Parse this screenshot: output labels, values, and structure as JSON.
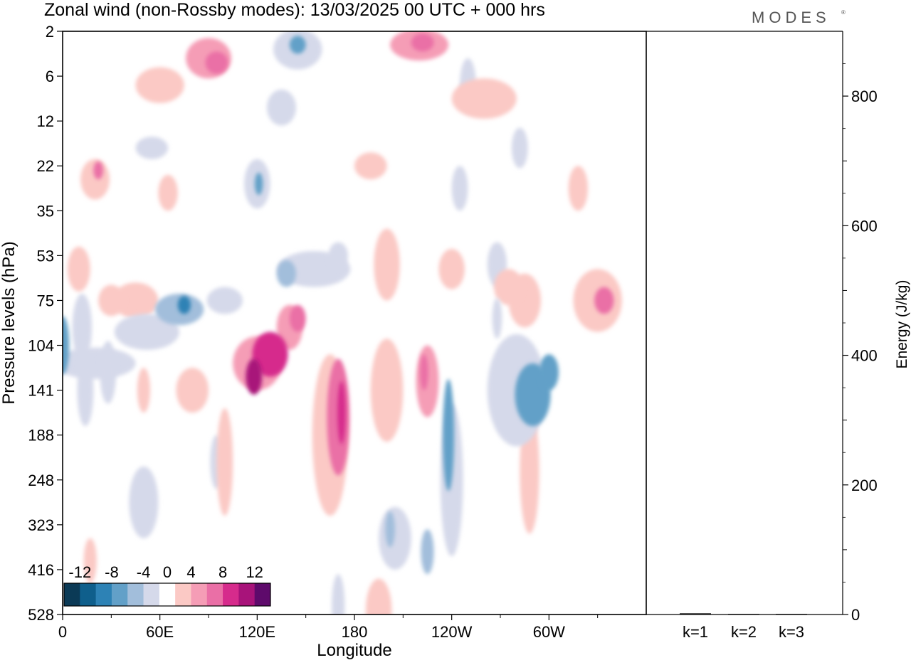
{
  "chart_data": {
    "type": "heatmap",
    "title": "Zonal wind (non-Rossby modes):  13/03/2025  00 UTC  + 000 hrs",
    "logo": "MODES",
    "xlabel": "Longitude",
    "ylabel": "Pressure levels (hPa)",
    "x_tick_labels": [
      "0",
      "60E",
      "120E",
      "180",
      "120W",
      "60W"
    ],
    "y_tick_labels": [
      "2",
      "6",
      "12",
      "22",
      "35",
      "53",
      "75",
      "104",
      "141",
      "188",
      "248",
      "323",
      "416",
      "528"
    ],
    "colorbar": {
      "tick_labels": [
        "-12",
        "-8",
        "-4",
        "0",
        "4",
        "8",
        "12"
      ],
      "levels": [
        -14,
        -12,
        -10,
        -8,
        -6,
        -4,
        -2,
        2,
        4,
        6,
        8,
        10,
        12,
        14
      ],
      "colors": [
        "#0b3a56",
        "#0f5f8c",
        "#2d82b5",
        "#62a0c8",
        "#a2bedb",
        "#d5d9ea",
        "#ffffff",
        "#fbc9c5",
        "#f59db6",
        "#ea6fa6",
        "#d62b8c",
        "#a8137a",
        "#5e0a6b"
      ]
    },
    "heatmap_blobs": [
      {
        "lon": 0,
        "p_index": 7.0,
        "w": 8,
        "h": 1.3,
        "value": -7
      },
      {
        "lon": 12,
        "p_index": 6.6,
        "w": 12,
        "h": 1.5,
        "value": -3
      },
      {
        "lon": 20,
        "p_index": 7.4,
        "w": 50,
        "h": 0.7,
        "value": -3
      },
      {
        "lon": 52,
        "p_index": 6.7,
        "w": 40,
        "h": 0.8,
        "value": -4
      },
      {
        "lon": 72,
        "p_index": 6.2,
        "w": 30,
        "h": 0.7,
        "value": -6
      },
      {
        "lon": 75,
        "p_index": 6.1,
        "w": 8,
        "h": 0.4,
        "value": -9
      },
      {
        "lon": 100,
        "p_index": 6.0,
        "w": 22,
        "h": 0.6,
        "value": -3
      },
      {
        "lon": 14,
        "p_index": 8.0,
        "w": 10,
        "h": 1.6,
        "value": -4
      },
      {
        "lon": 28,
        "p_index": 7.6,
        "w": 10,
        "h": 1.4,
        "value": -4
      },
      {
        "lon": 95,
        "p_index": 9.6,
        "w": 8,
        "h": 1.2,
        "value": -3
      },
      {
        "lon": 50,
        "p_index": 10.5,
        "w": 18,
        "h": 1.6,
        "value": -3
      },
      {
        "lon": 240,
        "p_index": 10.0,
        "w": 14,
        "h": 3.4,
        "value": -4
      },
      {
        "lon": 238,
        "p_index": 9.0,
        "w": 7,
        "h": 2.5,
        "value": -7
      },
      {
        "lon": 280,
        "p_index": 8.0,
        "w": 36,
        "h": 2.5,
        "value": -4
      },
      {
        "lon": 290,
        "p_index": 8.1,
        "w": 22,
        "h": 1.4,
        "value": -7
      },
      {
        "lon": 300,
        "p_index": 7.6,
        "w": 12,
        "h": 0.8,
        "value": -8
      },
      {
        "lon": 205,
        "p_index": 11.3,
        "w": 20,
        "h": 1.4,
        "value": -4
      },
      {
        "lon": 202,
        "p_index": 11.1,
        "w": 6,
        "h": 0.8,
        "value": -6
      },
      {
        "lon": 225,
        "p_index": 11.6,
        "w": 8,
        "h": 1.0,
        "value": -5
      },
      {
        "lon": 145,
        "p_index": 0.4,
        "w": 30,
        "h": 0.9,
        "value": -4
      },
      {
        "lon": 145,
        "p_index": 0.3,
        "w": 10,
        "h": 0.4,
        "value": -8
      },
      {
        "lon": 135,
        "p_index": 1.7,
        "w": 18,
        "h": 0.8,
        "value": -3
      },
      {
        "lon": 120,
        "p_index": 3.4,
        "w": 16,
        "h": 1.1,
        "value": -4
      },
      {
        "lon": 121,
        "p_index": 3.4,
        "w": 5,
        "h": 0.5,
        "value": -8
      },
      {
        "lon": 155,
        "p_index": 5.3,
        "w": 45,
        "h": 0.8,
        "value": -3
      },
      {
        "lon": 138,
        "p_index": 5.4,
        "w": 12,
        "h": 0.6,
        "value": -5
      },
      {
        "lon": 170,
        "p_index": 5.0,
        "w": 12,
        "h": 0.6,
        "value": -4
      },
      {
        "lon": 250,
        "p_index": 1.2,
        "w": 10,
        "h": 1.2,
        "value": -3
      },
      {
        "lon": 245,
        "p_index": 3.5,
        "w": 10,
        "h": 1.0,
        "value": -3
      },
      {
        "lon": 268,
        "p_index": 5.2,
        "w": 12,
        "h": 1.0,
        "value": -3
      },
      {
        "lon": 282,
        "p_index": 2.6,
        "w": 10,
        "h": 0.9,
        "value": -3
      },
      {
        "lon": 170,
        "p_index": 12.8,
        "w": 8,
        "h": 1.4,
        "value": -3
      },
      {
        "lon": 55,
        "p_index": 2.6,
        "w": 20,
        "h": 0.5,
        "value": -3
      },
      {
        "lon": 268,
        "p_index": 6.4,
        "w": 6,
        "h": 0.9,
        "value": -4
      },
      {
        "lon": 120,
        "p_index": 7.4,
        "w": 30,
        "h": 1.2,
        "value": 5
      },
      {
        "lon": 128,
        "p_index": 7.2,
        "w": 22,
        "h": 1.0,
        "value": 8
      },
      {
        "lon": 118,
        "p_index": 7.7,
        "w": 10,
        "h": 0.8,
        "value": 10
      },
      {
        "lon": 140,
        "p_index": 6.6,
        "w": 16,
        "h": 1.0,
        "value": 5
      },
      {
        "lon": 145,
        "p_index": 6.4,
        "w": 10,
        "h": 0.6,
        "value": 7
      },
      {
        "lon": 165,
        "p_index": 9.0,
        "w": 22,
        "h": 3.6,
        "value": 3
      },
      {
        "lon": 170,
        "p_index": 8.6,
        "w": 14,
        "h": 2.6,
        "value": 6
      },
      {
        "lon": 172,
        "p_index": 8.5,
        "w": 5,
        "h": 1.4,
        "value": 9
      },
      {
        "lon": 200,
        "p_index": 8.0,
        "w": 20,
        "h": 2.3,
        "value": 3
      },
      {
        "lon": 225,
        "p_index": 7.8,
        "w": 14,
        "h": 1.6,
        "value": 5
      },
      {
        "lon": 223,
        "p_index": 7.6,
        "w": 5,
        "h": 0.8,
        "value": 7
      },
      {
        "lon": 200,
        "p_index": 5.2,
        "w": 16,
        "h": 1.6,
        "value": 3
      },
      {
        "lon": 195,
        "p_index": 12.9,
        "w": 16,
        "h": 1.4,
        "value": 3
      },
      {
        "lon": 45,
        "p_index": 6.0,
        "w": 28,
        "h": 0.8,
        "value": 3
      },
      {
        "lon": 50,
        "p_index": 8.0,
        "w": 8,
        "h": 1.0,
        "value": 3
      },
      {
        "lon": 60,
        "p_index": 1.2,
        "w": 30,
        "h": 0.8,
        "value": 3
      },
      {
        "lon": 90,
        "p_index": 0.6,
        "w": 28,
        "h": 0.9,
        "value": 4
      },
      {
        "lon": 95,
        "p_index": 0.7,
        "w": 14,
        "h": 0.5,
        "value": 7
      },
      {
        "lon": 220,
        "p_index": 0.3,
        "w": 36,
        "h": 0.7,
        "value": 4
      },
      {
        "lon": 222,
        "p_index": 0.25,
        "w": 14,
        "h": 0.4,
        "value": 7
      },
      {
        "lon": 260,
        "p_index": 1.5,
        "w": 40,
        "h": 0.9,
        "value": 3
      },
      {
        "lon": 190,
        "p_index": 3.0,
        "w": 20,
        "h": 0.6,
        "value": 3
      },
      {
        "lon": 20,
        "p_index": 3.3,
        "w": 18,
        "h": 0.9,
        "value": 3
      },
      {
        "lon": 22,
        "p_index": 3.1,
        "w": 6,
        "h": 0.4,
        "value": 6
      },
      {
        "lon": 65,
        "p_index": 3.6,
        "w": 12,
        "h": 0.8,
        "value": 3
      },
      {
        "lon": 285,
        "p_index": 6.0,
        "w": 20,
        "h": 1.2,
        "value": 3
      },
      {
        "lon": 330,
        "p_index": 6.0,
        "w": 30,
        "h": 1.4,
        "value": 3
      },
      {
        "lon": 334,
        "p_index": 6.0,
        "w": 12,
        "h": 0.6,
        "value": 6
      },
      {
        "lon": 318,
        "p_index": 3.5,
        "w": 12,
        "h": 1.0,
        "value": 3
      },
      {
        "lon": 240,
        "p_index": 5.3,
        "w": 16,
        "h": 0.9,
        "value": 3
      },
      {
        "lon": 10,
        "p_index": 5.3,
        "w": 14,
        "h": 1.0,
        "value": 3
      },
      {
        "lon": 30,
        "p_index": 6.0,
        "w": 16,
        "h": 0.7,
        "value": 3
      },
      {
        "lon": 17,
        "p_index": 11.8,
        "w": 8,
        "h": 1.0,
        "value": 3
      },
      {
        "lon": 80,
        "p_index": 8.0,
        "w": 20,
        "h": 1.0,
        "value": 3
      },
      {
        "lon": 100,
        "p_index": 9.6,
        "w": 10,
        "h": 2.4,
        "value": 3
      },
      {
        "lon": 288,
        "p_index": 9.8,
        "w": 12,
        "h": 2.8,
        "value": 3
      },
      {
        "lon": 275,
        "p_index": 5.7,
        "w": 18,
        "h": 0.8,
        "value": 3
      }
    ],
    "energy_axis": {
      "ylabel": "Energy (J/kg)",
      "tick_labels": [
        "0",
        "200",
        "400",
        "600",
        "800"
      ],
      "ylim": [
        0,
        900
      ]
    },
    "energy_bars": {
      "categories": [
        "k=1",
        "k=2",
        "k=3"
      ],
      "values": [
        2,
        1,
        1
      ]
    }
  }
}
